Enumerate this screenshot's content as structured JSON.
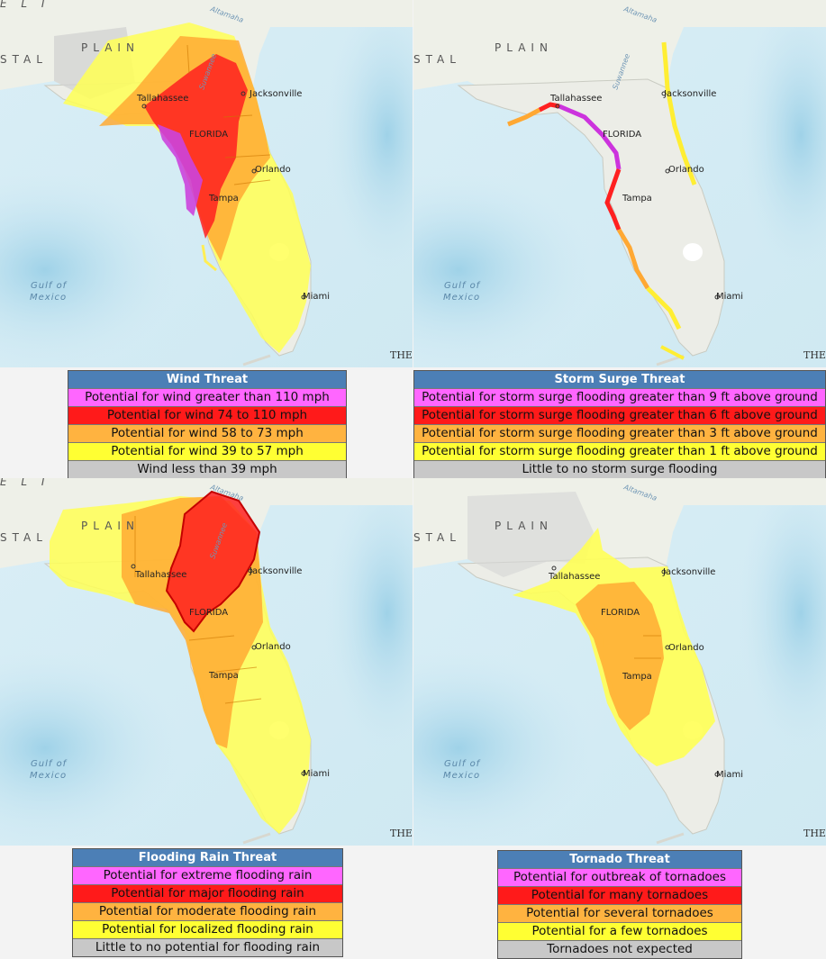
{
  "map_labels": {
    "plain_prefix": "STAL",
    "plain_word": "PLAIN",
    "altamaha": "Altamaha",
    "suwannee": "Suwannee",
    "tallahassee": "Tallahassee",
    "jacksonville": "Jacksonville",
    "florida": "FLORIDA",
    "orlando": "Orlando",
    "tampa": "Tampa",
    "miami": "Miami",
    "gulf_line1": "Gulf of",
    "gulf_line2": "Mexico",
    "bahamas_partial": "THE",
    "top_partial": "E L I"
  },
  "colors": {
    "header": "#4c7fb6",
    "magenta": "#ff66ff",
    "red": "#ff1a1a",
    "orange": "#ffb340",
    "yellow": "#ffff33",
    "gray": "#c8c8c8"
  },
  "panels": [
    {
      "title": "Wind Threat",
      "rows": [
        "Potential for wind greater than 110 mph",
        "Potential for wind 74 to 110 mph",
        "Potential for wind 58 to 73 mph",
        "Potential for wind 39 to 57 mph",
        "Wind less than 39 mph"
      ]
    },
    {
      "title": "Storm Surge Threat",
      "rows": [
        "Potential for storm surge flooding greater than 9 ft above ground",
        "Potential for storm surge flooding greater than 6 ft above ground",
        "Potential for storm surge flooding greater than 3 ft above ground",
        "Potential for storm surge flooding greater than 1 ft above ground",
        "Little to no storm surge flooding"
      ]
    },
    {
      "title": "Flooding Rain Threat",
      "rows": [
        "Potential for extreme flooding rain",
        "Potential for major flooding rain",
        "Potential for moderate flooding rain",
        "Potential for localized flooding rain",
        "Little to no potential for flooding rain"
      ]
    },
    {
      "title": "Tornado Threat",
      "rows": [
        "Potential for outbreak of tornadoes",
        "Potential for many  tornadoes",
        "Potential for several tornadoes",
        "Potential for a few tornadoes",
        "Tornadoes not expected"
      ]
    }
  ]
}
